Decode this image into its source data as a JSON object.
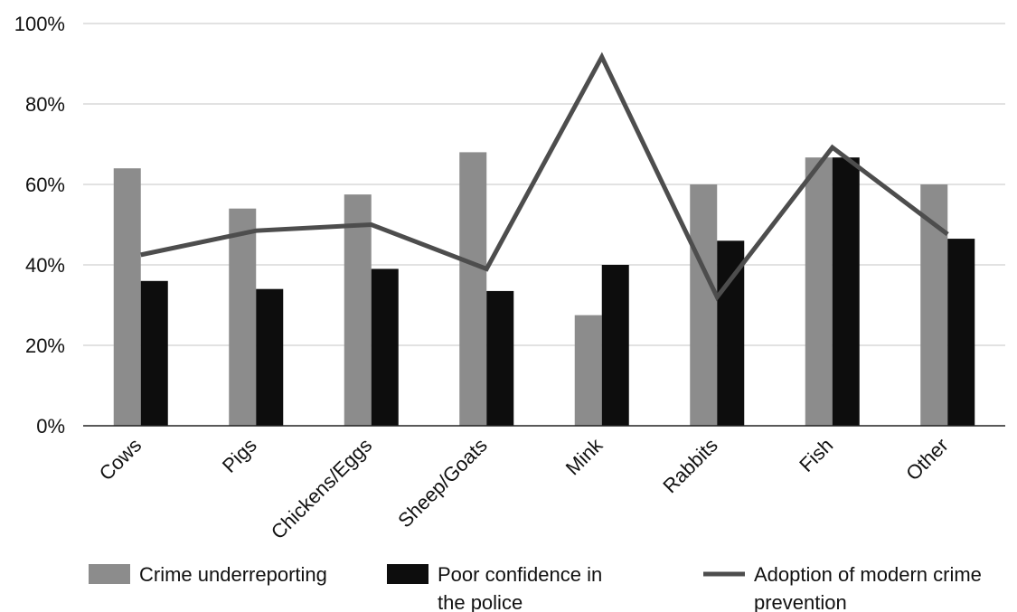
{
  "chart_data": {
    "type": "bar",
    "categories": [
      "Cows",
      "Pigs",
      "Chickens/Eggs",
      "Sheep/Goats",
      "Mink",
      "Rabbits",
      "Fish",
      "Other"
    ],
    "series": [
      {
        "name": "Crime underreporting",
        "type": "bar",
        "color": "#8c8c8c",
        "values": [
          64,
          54,
          57.5,
          68,
          27.5,
          60,
          66.7,
          60
        ]
      },
      {
        "name": "Poor confidence in the police",
        "type": "bar",
        "color": "#0d0d0d",
        "values": [
          36,
          34,
          39,
          33.5,
          40,
          46,
          66.7,
          46.5
        ]
      },
      {
        "name": "Adoption of modern crime prevention",
        "type": "line",
        "color": "#4d4d4d",
        "values": [
          42.5,
          48.5,
          50,
          39,
          91.7,
          32,
          69.2,
          47.6
        ]
      }
    ],
    "ylim": [
      0,
      100
    ],
    "yticks": [
      "0%",
      "20%",
      "40%",
      "60%",
      "80%",
      "100%"
    ],
    "grid": true,
    "legend_position": "bottom",
    "legend": [
      {
        "lines": [
          "Crime underreporting"
        ]
      },
      {
        "lines": [
          "Poor confidence in",
          "the police"
        ]
      },
      {
        "lines": [
          "Adoption of modern crime",
          "prevention"
        ]
      }
    ]
  }
}
